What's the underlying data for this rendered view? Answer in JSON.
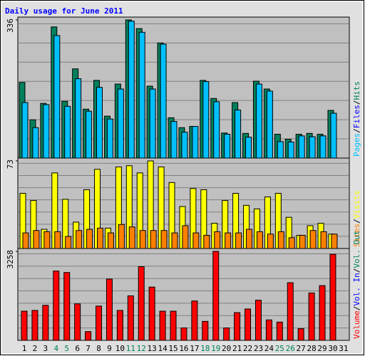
{
  "title": "Daily usage for June 2011",
  "separator": "/",
  "categories": [
    "1",
    "2",
    "3",
    "4",
    "5",
    "6",
    "7",
    "8",
    "9",
    "10",
    "11",
    "12",
    "13",
    "14",
    "15",
    "16",
    "17",
    "18",
    "19",
    "20",
    "21",
    "22",
    "23",
    "24",
    "25",
    "26",
    "27",
    "28",
    "29",
    "30",
    "31"
  ],
  "category_colors": [
    "#000000",
    "#000000",
    "#000000",
    "#00805c",
    "#00805c",
    "#000000",
    "#000000",
    "#000000",
    "#000000",
    "#000000",
    "#00805c",
    "#00805c",
    "#000000",
    "#000000",
    "#000000",
    "#000000",
    "#000000",
    "#00805c",
    "#00805c",
    "#000000",
    "#000000",
    "#000000",
    "#000000",
    "#000000",
    "#00805c",
    "#00805c",
    "#000000",
    "#000000",
    "#000000",
    "#000000",
    "#000000"
  ],
  "chart_data": [
    {
      "type": "bar",
      "ylim": [
        0,
        336
      ],
      "yticks": [
        336
      ],
      "grid": true,
      "series": [
        {
          "name": "Hits",
          "color": "#00805c",
          "values": [
            184,
            93,
            133,
            319,
            138,
            217,
            119,
            189,
            102,
            180,
            336,
            315,
            175,
            280,
            98,
            74,
            77,
            189,
            145,
            61,
            135,
            60,
            187,
            168,
            58,
            46,
            58,
            60,
            58,
            116,
            null
          ]
        },
        {
          "name": "Pages",
          "color": "#00c0ff",
          "values": [
            135,
            74,
            130,
            298,
            126,
            193,
            114,
            172,
            95,
            168,
            333,
            306,
            168,
            277,
            89,
            63,
            77,
            186,
            137,
            58,
            117,
            51,
            180,
            163,
            40,
            39,
            54,
            52,
            54,
            109,
            null
          ]
        }
      ],
      "legend": [
        {
          "text": "Pages",
          "color": "#00c0ff"
        },
        {
          "text": "Files",
          "color": "#0000ff"
        },
        {
          "text": "Hits",
          "color": "#00805c"
        }
      ]
    },
    {
      "type": "bar",
      "ylim": [
        0,
        73
      ],
      "yticks": [
        73
      ],
      "grid": true,
      "series": [
        {
          "name": "Visits",
          "color": "#ffff00",
          "values": [
            46,
            40,
            16,
            63,
            41,
            22,
            49,
            66,
            17,
            68,
            69,
            63,
            73,
            68,
            55,
            35,
            50,
            49,
            21,
            40,
            46,
            36,
            33,
            43,
            46,
            26,
            11,
            19,
            21,
            12,
            null
          ]
        },
        {
          "name": "Sites",
          "color": "#ff8000",
          "values": [
            13,
            15,
            14,
            14,
            10,
            15,
            16,
            17,
            13,
            20,
            18,
            15,
            15,
            15,
            13,
            19,
            13,
            11,
            14,
            13,
            13,
            16,
            14,
            12,
            14,
            9,
            11,
            15,
            14,
            12,
            null
          ]
        }
      ],
      "legend": [
        {
          "text": "Sites",
          "color": "#ff8000"
        },
        {
          "text": "Visits",
          "color": "#ffff00"
        }
      ]
    },
    {
      "type": "bar",
      "ylim": [
        0,
        3258
      ],
      "yticks": [
        3258
      ],
      "grid": true,
      "series": [
        {
          "name": "Volume",
          "color": "#ff0000",
          "values": [
            1068,
            1095,
            1282,
            2537,
            2484,
            1335,
            320,
            1255,
            2243,
            1095,
            1629,
            2697,
            1950,
            1068,
            1068,
            454,
            1442,
            694,
            3258,
            454,
            1015,
            1148,
            1469,
            748,
            668,
            2110,
            427,
            1736,
            2003,
            3151,
            null
          ]
        }
      ],
      "legend": [
        {
          "text": "Volume",
          "color": "#ff0000"
        },
        {
          "text": "Vol. In",
          "color": "#0000ff"
        },
        {
          "text": "Vol. Out",
          "color": "#00805c"
        }
      ]
    }
  ]
}
